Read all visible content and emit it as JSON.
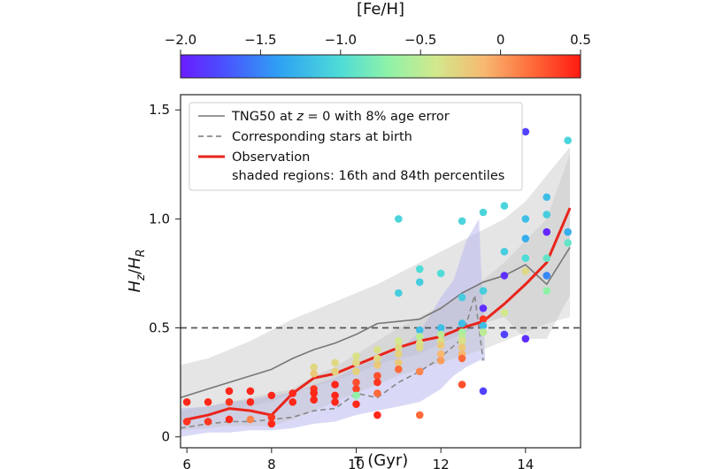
{
  "chart_data": {
    "type": "scatter",
    "title": "",
    "xlabel": {
      "symbol": "τ",
      "unit": "(Gyr)"
    },
    "ylabel": {
      "base1": "H",
      "sub1": "z",
      "sep": "/",
      "base2": "H",
      "sub2": "R"
    },
    "xlim": [
      5.85,
      15.3
    ],
    "ylim": [
      -0.05,
      1.57
    ],
    "xticks": [
      6,
      8,
      10,
      12,
      14
    ],
    "xtick_labels": [
      "6",
      "8",
      "10",
      "12",
      "14"
    ],
    "yticks": [
      0,
      0.5,
      1.0,
      1.5
    ],
    "ytick_labels": [
      "0",
      "0.5",
      "1.0",
      "1.5"
    ],
    "reference_line": {
      "y": 0.5,
      "style": "dashed",
      "color": "#555555"
    },
    "colorbar": {
      "label": "[Fe/H]",
      "range": [
        -2.0,
        0.5
      ],
      "ticks": [
        -2.0,
        -1.5,
        -1.0,
        -0.5,
        0,
        0.5
      ],
      "tick_labels": [
        "−2.0",
        "−1.5",
        "−1.0",
        "−0.5",
        "0",
        "0.5"
      ],
      "colormap": "rainbow"
    },
    "legend": {
      "placement": "top-left",
      "entries": [
        {
          "pre": "TNG50 at ",
          "italic": "z",
          "post": " = 0 with 8% age error",
          "style": "solid",
          "color": "#777777"
        },
        {
          "text": "Corresponding stars at birth",
          "style": "dashed",
          "color": "#777777"
        },
        {
          "text": "Observation",
          "style": "solid-thick",
          "color": "#e8251c"
        },
        {
          "text": "shaded regions: 16th and 84th percentiles"
        }
      ]
    },
    "series": [
      {
        "name": "TNG50 at z = 0 with 8% age error",
        "style": "solid",
        "color": "#777777",
        "x": [
          5.85,
          6.5,
          7.0,
          7.5,
          8.0,
          8.5,
          9.0,
          9.5,
          10.0,
          10.5,
          11.0,
          11.5,
          12.0,
          12.5,
          13.0,
          13.5,
          14.0,
          14.5,
          15.05
        ],
        "y": [
          0.18,
          0.22,
          0.25,
          0.28,
          0.31,
          0.36,
          0.4,
          0.43,
          0.47,
          0.52,
          0.53,
          0.54,
          0.59,
          0.66,
          0.71,
          0.74,
          0.79,
          0.7,
          0.87
        ]
      },
      {
        "name": "Corresponding stars at birth",
        "style": "dashed",
        "color": "#888888",
        "x": [
          5.85,
          6.5,
          7.0,
          7.5,
          8.0,
          8.5,
          9.0,
          9.5,
          10.0,
          10.5,
          11.0,
          11.5,
          11.9,
          12.2,
          12.5,
          12.8,
          13.0
        ],
        "y": [
          0.04,
          0.06,
          0.07,
          0.07,
          0.08,
          0.09,
          0.12,
          0.13,
          0.2,
          0.18,
          0.25,
          0.3,
          0.35,
          0.4,
          0.45,
          0.65,
          0.35
        ]
      },
      {
        "name": "Observation",
        "style": "solid-thick",
        "color": "#e8251c",
        "x": [
          6.0,
          6.5,
          7.0,
          7.5,
          8.0,
          8.5,
          9.0,
          9.5,
          10.0,
          10.5,
          11.0,
          11.5,
          12.0,
          12.5,
          13.0,
          13.5,
          14.0,
          14.5,
          15.05
        ],
        "y": [
          0.08,
          0.1,
          0.13,
          0.12,
          0.1,
          0.2,
          0.27,
          0.29,
          0.33,
          0.37,
          0.41,
          0.44,
          0.46,
          0.5,
          0.53,
          0.61,
          0.7,
          0.8,
          1.05
        ]
      }
    ],
    "bands": [
      {
        "name": "TNG50 percentile band",
        "color": "#cfcfcf",
        "opacity": 0.55,
        "x": [
          5.85,
          6.5,
          7.0,
          7.5,
          8.0,
          8.5,
          9.0,
          9.5,
          10.0,
          10.5,
          11.0,
          11.5,
          12.0,
          12.5,
          13.0,
          13.5,
          14.0,
          14.5,
          15.05
        ],
        "low": [
          0.07,
          0.1,
          0.12,
          0.14,
          0.16,
          0.2,
          0.23,
          0.26,
          0.29,
          0.33,
          0.36,
          0.38,
          0.43,
          0.47,
          0.52,
          0.55,
          0.45,
          0.45,
          0.65
        ],
        "high": [
          0.33,
          0.36,
          0.4,
          0.44,
          0.49,
          0.54,
          0.58,
          0.62,
          0.66,
          0.7,
          0.75,
          0.8,
          0.85,
          0.9,
          0.95,
          1.0,
          1.08,
          1.2,
          1.33
        ]
      },
      {
        "name": "birth percentile band",
        "color": "#b9b9f0",
        "opacity": 0.55,
        "x": [
          5.85,
          6.5,
          7.0,
          7.5,
          8.0,
          8.5,
          9.0,
          9.5,
          10.0,
          10.5,
          11.0,
          11.5,
          12.0,
          12.3,
          12.6,
          12.9,
          13.05
        ],
        "low": [
          0.0,
          0.02,
          0.02,
          0.03,
          0.03,
          0.04,
          0.06,
          0.07,
          0.1,
          0.12,
          0.14,
          0.16,
          0.22,
          0.28,
          0.32,
          0.35,
          0.35
        ],
        "high": [
          0.13,
          0.14,
          0.16,
          0.17,
          0.19,
          0.2,
          0.24,
          0.27,
          0.32,
          0.36,
          0.4,
          0.48,
          0.64,
          0.72,
          0.9,
          1.0,
          0.35
        ]
      },
      {
        "name": "Observation percentile band",
        "color": "#bcbcbc",
        "opacity": 0.35,
        "x": [
          5.85,
          6.5,
          7.0,
          7.5,
          8.0,
          8.5,
          9.0,
          9.5,
          10.0,
          10.5,
          11.0,
          11.5,
          12.0,
          12.5,
          13.0,
          13.5,
          14.0,
          14.5,
          15.05
        ],
        "low": [
          0.03,
          0.04,
          0.05,
          0.05,
          0.05,
          0.08,
          0.12,
          0.16,
          0.2,
          0.24,
          0.28,
          0.31,
          0.34,
          0.37,
          0.4,
          0.44,
          0.48,
          0.52,
          0.55
        ],
        "high": [
          0.12,
          0.14,
          0.16,
          0.18,
          0.2,
          0.22,
          0.28,
          0.32,
          0.38,
          0.44,
          0.5,
          0.55,
          0.6,
          0.65,
          0.72,
          0.8,
          0.9,
          1.0,
          1.3
        ]
      }
    ],
    "points": [
      {
        "x": 6.0,
        "y": 0.16,
        "feh": 0.45
      },
      {
        "x": 6.0,
        "y": 0.07,
        "feh": 0.4
      },
      {
        "x": 6.5,
        "y": 0.16,
        "feh": 0.45
      },
      {
        "x": 6.5,
        "y": 0.07,
        "feh": 0.4
      },
      {
        "x": 7.0,
        "y": 0.21,
        "feh": 0.45
      },
      {
        "x": 7.0,
        "y": 0.16,
        "feh": 0.4
      },
      {
        "x": 7.0,
        "y": 0.08,
        "feh": 0.45
      },
      {
        "x": 7.5,
        "y": 0.21,
        "feh": 0.45
      },
      {
        "x": 7.5,
        "y": 0.16,
        "feh": 0.45
      },
      {
        "x": 7.5,
        "y": 0.08,
        "feh": 0.1
      },
      {
        "x": 8.0,
        "y": 0.19,
        "feh": 0.45
      },
      {
        "x": 8.0,
        "y": 0.09,
        "feh": 0.4
      },
      {
        "x": 8.0,
        "y": 0.06,
        "feh": 0.45
      },
      {
        "x": 8.5,
        "y": 0.2,
        "feh": 0.45
      },
      {
        "x": 8.5,
        "y": 0.16,
        "feh": 0.45
      },
      {
        "x": 9.0,
        "y": 0.32,
        "feh": -0.3
      },
      {
        "x": 9.0,
        "y": 0.29,
        "feh": -0.2
      },
      {
        "x": 9.0,
        "y": 0.22,
        "feh": 0.4
      },
      {
        "x": 9.0,
        "y": 0.2,
        "feh": 0.45
      },
      {
        "x": 9.0,
        "y": 0.17,
        "feh": 0.45
      },
      {
        "x": 9.5,
        "y": 0.34,
        "feh": -0.3
      },
      {
        "x": 9.5,
        "y": 0.3,
        "feh": -0.25
      },
      {
        "x": 9.5,
        "y": 0.24,
        "feh": 0.45
      },
      {
        "x": 9.5,
        "y": 0.19,
        "feh": 0.45
      },
      {
        "x": 9.5,
        "y": 0.16,
        "feh": 0.45
      },
      {
        "x": 10.0,
        "y": 0.37,
        "feh": -0.35
      },
      {
        "x": 10.0,
        "y": 0.34,
        "feh": -0.3
      },
      {
        "x": 10.0,
        "y": 0.3,
        "feh": -0.25
      },
      {
        "x": 10.0,
        "y": 0.25,
        "feh": 0.3
      },
      {
        "x": 10.0,
        "y": 0.22,
        "feh": 0.35
      },
      {
        "x": 10.0,
        "y": 0.19,
        "feh": -0.7
      },
      {
        "x": 10.0,
        "y": 0.15,
        "feh": 0.45
      },
      {
        "x": 10.5,
        "y": 0.4,
        "feh": -0.35
      },
      {
        "x": 10.5,
        "y": 0.36,
        "feh": -0.3
      },
      {
        "x": 10.5,
        "y": 0.33,
        "feh": -0.2
      },
      {
        "x": 10.5,
        "y": 0.28,
        "feh": 0.3
      },
      {
        "x": 10.5,
        "y": 0.25,
        "feh": 0.4
      },
      {
        "x": 10.5,
        "y": 0.2,
        "feh": 0.2
      },
      {
        "x": 10.5,
        "y": 0.1,
        "feh": 0.45
      },
      {
        "x": 11.0,
        "y": 1.0,
        "feh": -1.05
      },
      {
        "x": 11.0,
        "y": 0.66,
        "feh": -1.1
      },
      {
        "x": 11.0,
        "y": 0.44,
        "feh": -0.4
      },
      {
        "x": 11.0,
        "y": 0.41,
        "feh": -0.3
      },
      {
        "x": 11.0,
        "y": 0.38,
        "feh": -0.25
      },
      {
        "x": 11.0,
        "y": 0.34,
        "feh": -0.2
      },
      {
        "x": 11.0,
        "y": 0.31,
        "feh": 0.2
      },
      {
        "x": 11.5,
        "y": 0.77,
        "feh": -1.0
      },
      {
        "x": 11.5,
        "y": 0.71,
        "feh": -1.1
      },
      {
        "x": 11.5,
        "y": 0.49,
        "feh": -1.2
      },
      {
        "x": 11.5,
        "y": 0.46,
        "feh": -0.5
      },
      {
        "x": 11.5,
        "y": 0.43,
        "feh": -0.35
      },
      {
        "x": 11.5,
        "y": 0.41,
        "feh": -0.3
      },
      {
        "x": 11.5,
        "y": 0.3,
        "feh": 0.1
      },
      {
        "x": 11.5,
        "y": 0.1,
        "feh": 0.2
      },
      {
        "x": 12.0,
        "y": 0.75,
        "feh": -1.0
      },
      {
        "x": 12.0,
        "y": 0.5,
        "feh": -1.2
      },
      {
        "x": 12.0,
        "y": 0.47,
        "feh": -0.5
      },
      {
        "x": 12.0,
        "y": 0.44,
        "feh": -0.35
      },
      {
        "x": 12.0,
        "y": 0.42,
        "feh": -0.2
      },
      {
        "x": 12.0,
        "y": 0.38,
        "feh": -0.1
      },
      {
        "x": 12.0,
        "y": 0.35,
        "feh": 0.0
      },
      {
        "x": 12.5,
        "y": 0.99,
        "feh": -1.05
      },
      {
        "x": 12.5,
        "y": 0.64,
        "feh": -1.1
      },
      {
        "x": 12.5,
        "y": 0.52,
        "feh": -1.2
      },
      {
        "x": 12.5,
        "y": 0.48,
        "feh": -0.6
      },
      {
        "x": 12.5,
        "y": 0.46,
        "feh": -0.5
      },
      {
        "x": 12.5,
        "y": 0.44,
        "feh": -0.35
      },
      {
        "x": 12.5,
        "y": 0.41,
        "feh": -0.2
      },
      {
        "x": 12.5,
        "y": 0.38,
        "feh": -0.1
      },
      {
        "x": 12.5,
        "y": 0.36,
        "feh": 0.2
      },
      {
        "x": 12.5,
        "y": 0.24,
        "feh": 0.3
      },
      {
        "x": 13.0,
        "y": 1.03,
        "feh": -1.05
      },
      {
        "x": 13.0,
        "y": 0.67,
        "feh": -1.1
      },
      {
        "x": 13.0,
        "y": 0.59,
        "feh": -1.9
      },
      {
        "x": 13.0,
        "y": 0.54,
        "feh": 0.4
      },
      {
        "x": 13.0,
        "y": 0.51,
        "feh": -1.2
      },
      {
        "x": 13.0,
        "y": 0.48,
        "feh": -0.5
      },
      {
        "x": 13.0,
        "y": 0.21,
        "feh": -1.8
      },
      {
        "x": 13.5,
        "y": 1.06,
        "feh": -1.05
      },
      {
        "x": 13.5,
        "y": 0.85,
        "feh": -1.1
      },
      {
        "x": 13.5,
        "y": 0.74,
        "feh": -1.9
      },
      {
        "x": 13.5,
        "y": 0.57,
        "feh": -0.4
      },
      {
        "x": 13.5,
        "y": 0.47,
        "feh": -1.8
      },
      {
        "x": 14.0,
        "y": 1.4,
        "feh": -1.8
      },
      {
        "x": 14.0,
        "y": 1.0,
        "feh": -1.2
      },
      {
        "x": 14.0,
        "y": 0.91,
        "feh": -1.3
      },
      {
        "x": 14.0,
        "y": 0.82,
        "feh": -1.0
      },
      {
        "x": 14.0,
        "y": 0.76,
        "feh": -0.3
      },
      {
        "x": 14.0,
        "y": 0.45,
        "feh": -1.9
      },
      {
        "x": 14.5,
        "y": 1.1,
        "feh": -1.2
      },
      {
        "x": 14.5,
        "y": 1.02,
        "feh": -1.1
      },
      {
        "x": 14.5,
        "y": 0.94,
        "feh": -1.95
      },
      {
        "x": 14.5,
        "y": 0.82,
        "feh": -0.9
      },
      {
        "x": 14.5,
        "y": 0.74,
        "feh": -1.5
      },
      {
        "x": 14.5,
        "y": 0.67,
        "feh": -0.7
      },
      {
        "x": 15.0,
        "y": 1.36,
        "feh": -1.05
      },
      {
        "x": 15.0,
        "y": 0.94,
        "feh": -1.3
      },
      {
        "x": 15.0,
        "y": 0.89,
        "feh": -0.9
      }
    ]
  }
}
